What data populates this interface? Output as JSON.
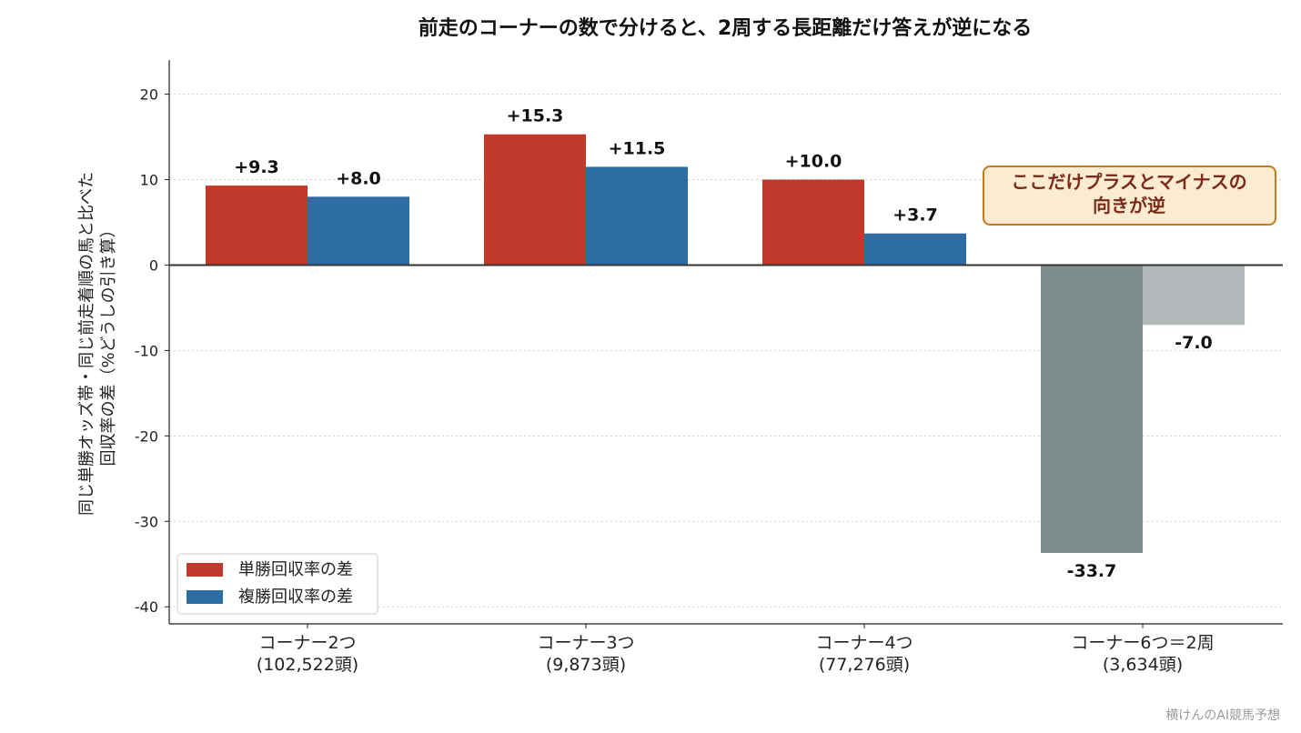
{
  "chart_data": {
    "type": "bar",
    "title": "前走のコーナーの数で分けると、2周する長距離だけ答えが逆になる",
    "ylabel_lines": [
      "同じ単勝オッズ帯・同じ前走着順の馬と比べた",
      "回収率の差（%どうしの引き算）"
    ],
    "categories": [
      [
        "コーナー2つ",
        "(102,522頭)"
      ],
      [
        "コーナー3つ",
        "(9,873頭)"
      ],
      [
        "コーナー4つ",
        "(77,276頭)"
      ],
      [
        "コーナー6つ＝2周",
        "(3,634頭)"
      ]
    ],
    "series": [
      {
        "name": "単勝回収率の差",
        "values": [
          9.3,
          15.3,
          10.0,
          -33.7
        ],
        "labels": [
          "+9.3",
          "+15.3",
          "+10.0",
          "-33.7"
        ],
        "colors": [
          "#c0392b",
          "#c0392b",
          "#c0392b",
          "#7f8c8d"
        ]
      },
      {
        "name": "複勝回収率の差",
        "values": [
          8.0,
          11.5,
          3.7,
          -7.0
        ],
        "labels": [
          "+8.0",
          "+11.5",
          "+3.7",
          "-7.0"
        ],
        "colors": [
          "#2e6da4",
          "#2e6da4",
          "#2e6da4",
          "#b3b9ba"
        ]
      }
    ],
    "ylim": [
      -42,
      24
    ],
    "yticks": [
      20,
      10,
      0,
      -10,
      -20,
      -30,
      -40
    ],
    "grid": "horizontal dotted",
    "legend_position": "lower-left",
    "annotation": {
      "lines": [
        "ここだけプラスとマイナスの",
        "向きが逆"
      ],
      "border": "#c57a1e",
      "fill": "#fbebd0"
    }
  },
  "credit": "横けんのAI競馬予想"
}
